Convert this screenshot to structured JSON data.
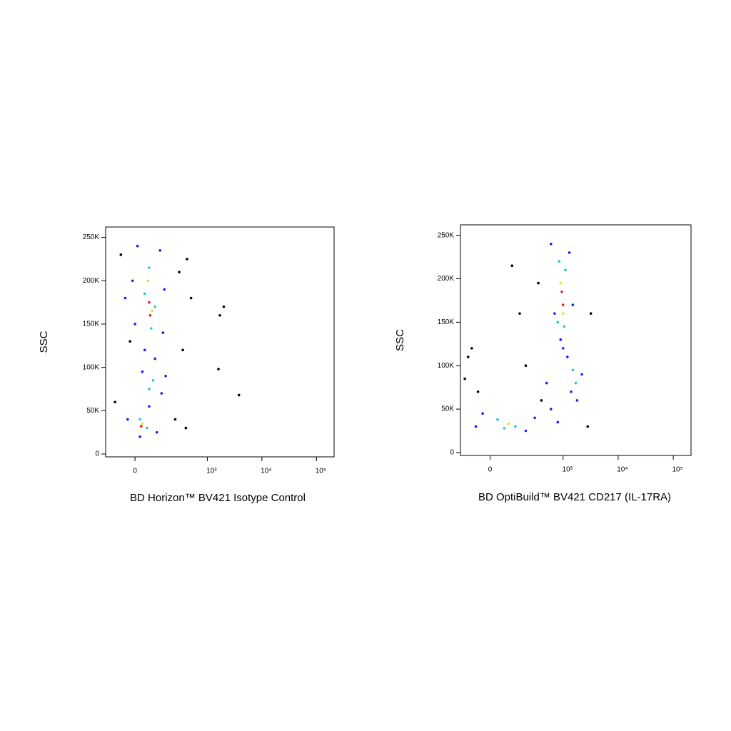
{
  "chart_data": [
    {
      "type": "scatter",
      "xlabel": "BD Horizon™ BV421 Isotype Control",
      "ylabel": "SSC",
      "xscale": "biexponential",
      "xlim": [
        -150,
        210000
      ],
      "ylim": [
        -3300,
        262000
      ],
      "xticks": [
        0,
        {
          "value": 1000,
          "label": "10³"
        },
        {
          "value": 10000,
          "label": "10⁴"
        },
        {
          "value": 100000,
          "label": "10⁵"
        }
      ],
      "yticks": [
        0,
        {
          "value": 50000,
          "label": "50K"
        },
        {
          "value": 100000,
          "label": "100K"
        },
        {
          "value": 150000,
          "label": "150K"
        },
        {
          "value": 200000,
          "label": "200K"
        },
        {
          "value": 250000,
          "label": "250K"
        }
      ],
      "series": [
        {
          "color": "#000000",
          "x": [
            -60,
            300,
            420,
            1700,
            2000,
            1600,
            3800,
            -20,
            250,
            400,
            -90,
            350,
            500
          ],
          "y": [
            230000,
            210000,
            225000,
            160000,
            170000,
            98000,
            68000,
            130000,
            40000,
            30000,
            60000,
            120000,
            180000
          ]
        },
        {
          "color": "#1a1aff",
          "x": [
            10,
            120,
            -10,
            150,
            0,
            140,
            40,
            90,
            30,
            130,
            60,
            -30,
            100,
            20,
            160,
            -40
          ],
          "y": [
            240000,
            235000,
            200000,
            190000,
            150000,
            140000,
            120000,
            110000,
            95000,
            70000,
            55000,
            40000,
            25000,
            20000,
            90000,
            180000
          ]
        },
        {
          "color": "#20c8d8",
          "x": [
            60,
            40,
            90,
            70,
            80,
            60,
            20,
            50
          ],
          "y": [
            215000,
            185000,
            170000,
            145000,
            85000,
            75000,
            40000,
            30000
          ]
        },
        {
          "color": "#e0e020",
          "x": [
            55,
            75,
            30
          ],
          "y": [
            200000,
            165000,
            35000
          ]
        },
        {
          "color": "#e02020",
          "x": [
            60,
            65,
            25
          ],
          "y": [
            175000,
            160000,
            32000
          ]
        }
      ]
    },
    {
      "type": "scatter",
      "xlabel": "BD OptiBuild™ BV421 CD217 (IL-17RA)",
      "ylabel": "SSC",
      "xscale": "biexponential",
      "xlim": [
        -150,
        210000
      ],
      "ylim": [
        -3300,
        262000
      ],
      "xticks": [
        0,
        {
          "value": 1000,
          "label": "10³"
        },
        {
          "value": 10000,
          "label": "10⁴"
        },
        {
          "value": 100000,
          "label": "10⁵"
        }
      ],
      "yticks": [
        0,
        {
          "value": 50000,
          "label": "50K"
        },
        {
          "value": 100000,
          "label": "100K"
        },
        {
          "value": 150000,
          "label": "150K"
        },
        {
          "value": 200000,
          "label": "200K"
        },
        {
          "value": 250000,
          "label": "250K"
        }
      ],
      "series": [
        {
          "color": "#000000",
          "x": [
            -120,
            -80,
            100,
            350,
            150,
            -50,
            2800,
            3200,
            400,
            200,
            -100
          ],
          "y": [
            85000,
            120000,
            215000,
            195000,
            160000,
            70000,
            30000,
            160000,
            60000,
            100000,
            110000
          ]
        },
        {
          "color": "#1a1aff",
          "x": [
            600,
            1300,
            700,
            1500,
            900,
            1200,
            1400,
            2200,
            1800,
            600,
            300,
            800,
            -60,
            200,
            -30,
            1000,
            500
          ],
          "y": [
            240000,
            230000,
            160000,
            170000,
            130000,
            110000,
            70000,
            90000,
            60000,
            50000,
            40000,
            35000,
            30000,
            25000,
            45000,
            120000,
            80000
          ]
        },
        {
          "color": "#20c8d8",
          "x": [
            850,
            1100,
            800,
            1050,
            1500,
            1700,
            30,
            120,
            60
          ],
          "y": [
            220000,
            210000,
            150000,
            145000,
            95000,
            80000,
            38000,
            30000,
            28000
          ]
        },
        {
          "color": "#e0e020",
          "x": [
            900,
            1000,
            80
          ],
          "y": [
            195000,
            160000,
            33000
          ]
        },
        {
          "color": "#e02020",
          "x": [
            950,
            1000
          ],
          "y": [
            185000,
            170000
          ]
        }
      ]
    }
  ]
}
